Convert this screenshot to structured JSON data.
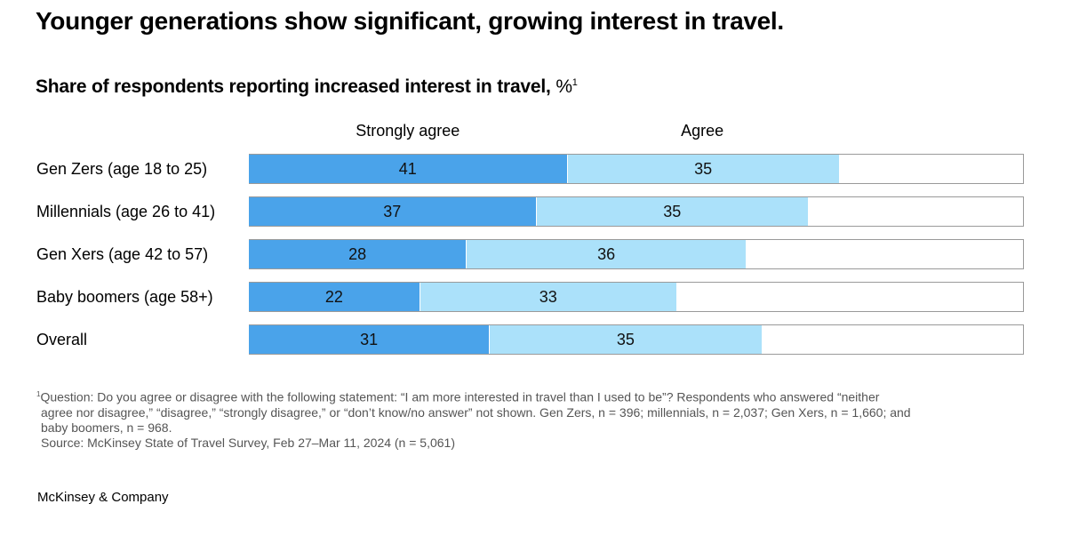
{
  "title": "Younger generations show significant, growing interest in travel.",
  "brand": "McKinsey & Company",
  "chart_data": {
    "type": "bar",
    "orientation": "horizontal",
    "stacked": true,
    "title": "Share of respondents reporting increased interest in travel,",
    "unit": "%",
    "footnote_marker": "1",
    "xlim": [
      0,
      100
    ],
    "grid": false,
    "legend_placement": "top",
    "categories": [
      "Gen Zers (age 18 to 25)",
      "Millennials (age 26 to 41)",
      "Gen Xers (age 42 to 57)",
      "Baby boomers (age 58+)",
      "Overall"
    ],
    "series": [
      {
        "name": "Strongly agree",
        "color": "#4aa3ea",
        "values": [
          41,
          37,
          28,
          22,
          31
        ]
      },
      {
        "name": "Agree",
        "color": "#abe1fa",
        "values": [
          35,
          35,
          36,
          33,
          35
        ]
      }
    ]
  },
  "footnotes": {
    "marker": "1",
    "lines": [
      "Question: Do you agree or disagree with the following statement: “I am more interested in travel than I used to be”? Respondents who answered “neither",
      "agree nor disagree,” “disagree,” “strongly disagree,” or “don’t know/no answer” not shown. Gen Zers, n = 396; millennials, n = 2,037; Gen Xers, n = 1,660; and",
      "baby boomers, n = 968.",
      "Source: McKinsey State of Travel Survey, Feb 27–Mar 11, 2024 (n = 5,061)"
    ]
  }
}
